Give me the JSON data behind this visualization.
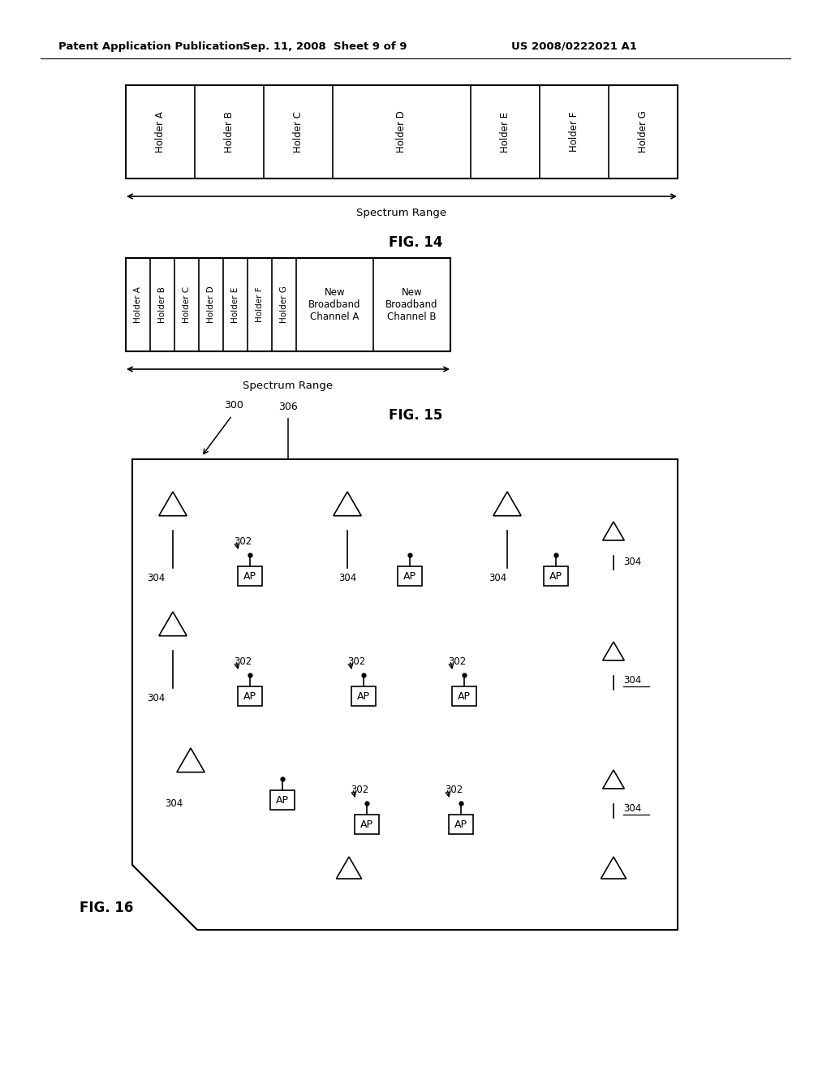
{
  "bg_color": "#ffffff",
  "header_left": "Patent Application Publication",
  "header_mid": "Sep. 11, 2008  Sheet 9 of 9",
  "header_right": "US 2008/0222021 A1",
  "fig14_label": "FIG. 14",
  "fig15_label": "FIG. 15",
  "fig16_label": "FIG. 16",
  "spectrum_range_label": "Spectrum Range",
  "fig14_holders": [
    "Holder A",
    "Holder B",
    "Holder C",
    "Holder D",
    "Holder E",
    "Holder F",
    "Holder G"
  ],
  "fig14_widths": [
    1,
    1,
    1,
    2,
    1,
    1,
    1
  ],
  "fig15_holders": [
    "Holder A",
    "Holder B",
    "Holder C",
    "Holder D",
    "Holder E",
    "Holder F",
    "Holder G"
  ],
  "fig15_extras": [
    "New\nBroadband\nChannel A",
    "New\nBroadband\nChannel B"
  ]
}
